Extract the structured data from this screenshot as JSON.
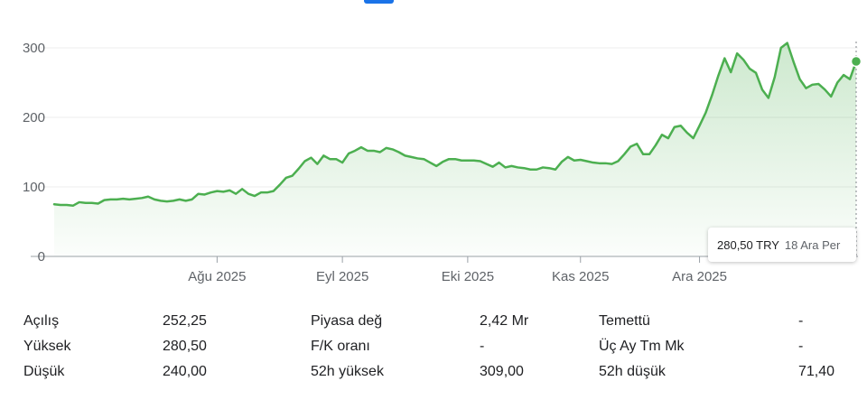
{
  "chart_data": {
    "type": "area",
    "y_ticks": [
      0,
      100,
      200,
      300
    ],
    "ylim": [
      0,
      320
    ],
    "x_tick_labels": [
      "Ağu 2025",
      "Eyl 2025",
      "Eki 2025",
      "Kas 2025",
      "Ara 2025"
    ],
    "x_tick_index": [
      26,
      46,
      66,
      84,
      103
    ],
    "series": [
      {
        "values": [
          75,
          74,
          74,
          73,
          78,
          77,
          77,
          76,
          81,
          82,
          82,
          83,
          82,
          83,
          84,
          86,
          82,
          80,
          79,
          80,
          82,
          80,
          82,
          90,
          89,
          92,
          94,
          93,
          95,
          90,
          97,
          90,
          87,
          92,
          92,
          94,
          103,
          113,
          116,
          126,
          137,
          142,
          133,
          145,
          140,
          140,
          135,
          148,
          152,
          157,
          152,
          152,
          150,
          156,
          154,
          150,
          145,
          143,
          141,
          140,
          135,
          130,
          136,
          140,
          140,
          138,
          138,
          138,
          137,
          133,
          129,
          135,
          128,
          130,
          128,
          127,
          125,
          125,
          128,
          127,
          125,
          136,
          143,
          138,
          139,
          137,
          135,
          134,
          134,
          133,
          137,
          147,
          158,
          162,
          147,
          147,
          160,
          175,
          170,
          186,
          188,
          178,
          170,
          188,
          207,
          232,
          260,
          285,
          265,
          292,
          283,
          270,
          264,
          240,
          228,
          258,
          300,
          307,
          280,
          255,
          242,
          247,
          248,
          240,
          230,
          250,
          261,
          255,
          280.5
        ]
      }
    ],
    "color": "#4caf50",
    "grid": true,
    "tooltip": {
      "price": "280,50 TRY",
      "date": "18 Ara Per"
    }
  },
  "stats": {
    "rows": [
      [
        {
          "label": "Açılış",
          "value": "252,25"
        },
        {
          "label": "Piyasa değ",
          "value": "2,42 Mr"
        },
        {
          "label": "Temettü",
          "value": "-"
        }
      ],
      [
        {
          "label": "Yüksek",
          "value": "280,50"
        },
        {
          "label": "F/K oranı",
          "value": "-"
        },
        {
          "label": "Üç Ay Tm Mk",
          "value": "-"
        }
      ],
      [
        {
          "label": "Düşük",
          "value": "240,00"
        },
        {
          "label": "52h yüksek",
          "value": "309,00"
        },
        {
          "label": "52h düşük",
          "value": "71,40"
        }
      ]
    ]
  }
}
